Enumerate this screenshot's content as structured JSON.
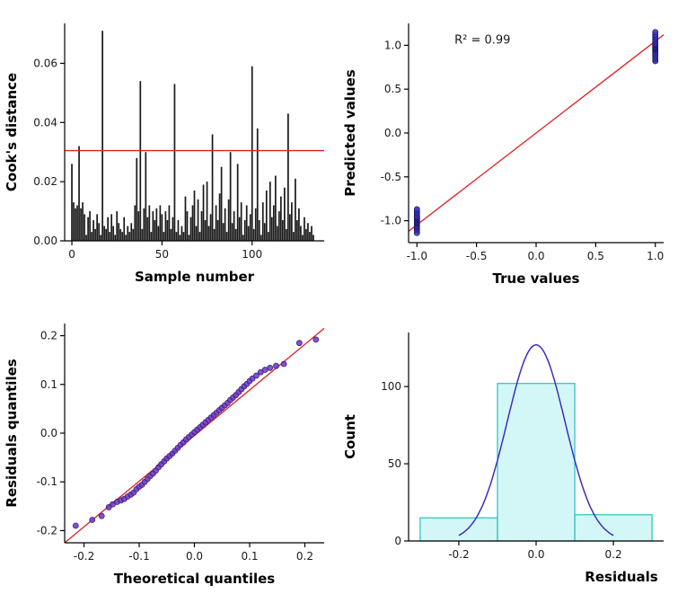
{
  "figure": {
    "background": "#ffffff"
  },
  "chart_data": [
    {
      "id": "cooks-distance",
      "type": "bar",
      "title": "",
      "xlabel": "Sample number",
      "ylabel": "Cook's distance",
      "xlim": [
        -4,
        140
      ],
      "ylim": [
        0,
        0.0735
      ],
      "xticks": {
        "vals": [
          0,
          50,
          100
        ],
        "labels": [
          "0",
          "50",
          "100"
        ]
      },
      "yticks": {
        "vals": [
          0.0,
          0.02,
          0.04,
          0.06
        ],
        "labels": [
          "0.00",
          "0.02",
          "0.04",
          "0.06"
        ]
      },
      "bar_color": "#1a1a1a",
      "threshold_line": {
        "y": 0.0305,
        "color": "#e02222"
      },
      "values": [
        0.026,
        0.013,
        0.011,
        0.012,
        0.032,
        0.011,
        0.013,
        0.009,
        0.002,
        0.008,
        0.01,
        0.003,
        0.007,
        0.004,
        0.009,
        0.006,
        0.002,
        0.071,
        0.005,
        0.004,
        0.008,
        0.003,
        0.009,
        0.005,
        0.002,
        0.01,
        0.006,
        0.004,
        0.003,
        0.008,
        0.002,
        0.005,
        0.003,
        0.006,
        0.004,
        0.012,
        0.028,
        0.01,
        0.054,
        0.004,
        0.011,
        0.03,
        0.008,
        0.012,
        0.003,
        0.01,
        0.007,
        0.011,
        0.005,
        0.012,
        0.009,
        0.003,
        0.01,
        0.007,
        0.012,
        0.004,
        0.008,
        0.053,
        0.003,
        0.007,
        0.002,
        0.005,
        0.003,
        0.015,
        0.01,
        0.002,
        0.008,
        0.012,
        0.017,
        0.005,
        0.014,
        0.003,
        0.01,
        0.019,
        0.007,
        0.02,
        0.005,
        0.009,
        0.036,
        0.004,
        0.012,
        0.007,
        0.016,
        0.025,
        0.006,
        0.011,
        0.003,
        0.014,
        0.03,
        0.006,
        0.01,
        0.004,
        0.026,
        0.008,
        0.013,
        0.002,
        0.007,
        0.012,
        0.005,
        0.009,
        0.059,
        0.004,
        0.011,
        0.038,
        0.007,
        0.002,
        0.013,
        0.006,
        0.017,
        0.003,
        0.02,
        0.008,
        0.012,
        0.022,
        0.005,
        0.01,
        0.015,
        0.007,
        0.018,
        0.004,
        0.043,
        0.009,
        0.013,
        0.003,
        0.021,
        0.007,
        0.011,
        0.005,
        0.002,
        0.008,
        0.004,
        0.006,
        0.003,
        0.005,
        0.002
      ]
    },
    {
      "id": "pred-vs-true",
      "type": "scatter",
      "title": "",
      "xlabel": "True values",
      "ylabel": "Predicted values",
      "xlim": [
        -1.07,
        1.07
      ],
      "ylim": [
        -1.25,
        1.25
      ],
      "xticks": {
        "vals": [
          -1.0,
          -0.5,
          0.0,
          0.5,
          1.0
        ],
        "labels": [
          "-1.0",
          "-0.5",
          "0.0",
          "0.5",
          "1.0"
        ]
      },
      "yticks": {
        "vals": [
          -1.0,
          -0.5,
          0.0,
          0.5,
          1.0
        ],
        "labels": [
          "-1.0",
          "-0.5",
          "0.0",
          "0.5",
          "1.0"
        ]
      },
      "point_color": "#3f37c8",
      "point_edge": "#1f1a66",
      "line": {
        "x1": -1.07,
        "y1": -1.12,
        "x2": 1.07,
        "y2": 1.12,
        "color": "#e02222"
      },
      "annotation": {
        "text": "R² = 0.99",
        "x": -0.45,
        "y": 1.02
      },
      "points": [
        [
          -1,
          -1.14
        ],
        [
          -1,
          -1.11
        ],
        [
          -1,
          -1.09
        ],
        [
          -1,
          -1.07
        ],
        [
          -1,
          -1.06
        ],
        [
          -1,
          -1.04
        ],
        [
          -1,
          -1.03
        ],
        [
          -1,
          -1.02
        ],
        [
          -1,
          -1.01
        ],
        [
          -1,
          -1.0
        ],
        [
          -1,
          -0.99
        ],
        [
          -1,
          -0.98
        ],
        [
          -1,
          -0.97
        ],
        [
          -1,
          -0.96
        ],
        [
          -1,
          -0.95
        ],
        [
          -1,
          -0.93
        ],
        [
          -1,
          -0.91
        ],
        [
          -1,
          -0.89
        ],
        [
          -1,
          -0.87
        ],
        [
          1,
          0.82
        ],
        [
          1,
          0.84
        ],
        [
          1,
          0.86
        ],
        [
          1,
          0.88
        ],
        [
          1,
          0.9
        ],
        [
          1,
          0.92
        ],
        [
          1,
          0.94
        ],
        [
          1,
          0.95
        ],
        [
          1,
          0.96
        ],
        [
          1,
          0.97
        ],
        [
          1,
          0.98
        ],
        [
          1,
          0.99
        ],
        [
          1,
          1.0
        ],
        [
          1,
          1.01
        ],
        [
          1,
          1.02
        ],
        [
          1,
          1.04
        ],
        [
          1,
          1.06
        ],
        [
          1,
          1.08
        ],
        [
          1,
          1.1
        ],
        [
          1,
          1.12
        ],
        [
          1,
          1.15
        ]
      ]
    },
    {
      "id": "qq-plot",
      "type": "scatter",
      "title": "",
      "xlabel": "Theoretical quantiles",
      "ylabel": "Residuals quantiles",
      "xlim": [
        -0.235,
        0.235
      ],
      "ylim": [
        -0.225,
        0.225
      ],
      "xticks": {
        "vals": [
          -0.2,
          -0.1,
          0.0,
          0.1,
          0.2
        ],
        "labels": [
          "-0.2",
          "-0.1",
          "0.0",
          "0.1",
          "0.2"
        ]
      },
      "yticks": {
        "vals": [
          -0.2,
          -0.1,
          0.0,
          0.1,
          0.2
        ],
        "labels": [
          "-0.2",
          "-0.1",
          "0.0",
          "0.1",
          "0.2"
        ]
      },
      "point_color": "#6b35c8",
      "point_edge": "#3c1f78",
      "line": {
        "x1": -0.235,
        "y1": -0.225,
        "x2": 0.235,
        "y2": 0.215,
        "color": "#e02222"
      },
      "annotation": null,
      "points": [
        [
          -0.215,
          -0.19
        ],
        [
          -0.185,
          -0.178
        ],
        [
          -0.168,
          -0.17
        ],
        [
          -0.155,
          -0.152
        ],
        [
          -0.148,
          -0.146
        ],
        [
          -0.14,
          -0.141
        ],
        [
          -0.133,
          -0.138
        ],
        [
          -0.127,
          -0.135
        ],
        [
          -0.121,
          -0.13
        ],
        [
          -0.115,
          -0.126
        ],
        [
          -0.11,
          -0.122
        ],
        [
          -0.105,
          -0.115
        ],
        [
          -0.1,
          -0.11
        ],
        [
          -0.095,
          -0.106
        ],
        [
          -0.09,
          -0.1
        ],
        [
          -0.085,
          -0.094
        ],
        [
          -0.08,
          -0.088
        ],
        [
          -0.075,
          -0.083
        ],
        [
          -0.07,
          -0.077
        ],
        [
          -0.065,
          -0.07
        ],
        [
          -0.06,
          -0.064
        ],
        [
          -0.055,
          -0.058
        ],
        [
          -0.05,
          -0.052
        ],
        [
          -0.045,
          -0.047
        ],
        [
          -0.04,
          -0.042
        ],
        [
          -0.035,
          -0.036
        ],
        [
          -0.03,
          -0.03
        ],
        [
          -0.025,
          -0.024
        ],
        [
          -0.02,
          -0.019
        ],
        [
          -0.015,
          -0.013
        ],
        [
          -0.01,
          -0.008
        ],
        [
          -0.005,
          -0.003
        ],
        [
          0.0,
          0.002
        ],
        [
          0.005,
          0.007
        ],
        [
          0.01,
          0.012
        ],
        [
          0.015,
          0.017
        ],
        [
          0.02,
          0.022
        ],
        [
          0.025,
          0.027
        ],
        [
          0.03,
          0.032
        ],
        [
          0.035,
          0.037
        ],
        [
          0.04,
          0.042
        ],
        [
          0.045,
          0.047
        ],
        [
          0.05,
          0.052
        ],
        [
          0.055,
          0.057
        ],
        [
          0.06,
          0.062
        ],
        [
          0.065,
          0.068
        ],
        [
          0.07,
          0.073
        ],
        [
          0.075,
          0.078
        ],
        [
          0.08,
          0.084
        ],
        [
          0.085,
          0.09
        ],
        [
          0.09,
          0.096
        ],
        [
          0.095,
          0.101
        ],
        [
          0.1,
          0.107
        ],
        [
          0.105,
          0.112
        ],
        [
          0.112,
          0.118
        ],
        [
          0.12,
          0.125
        ],
        [
          0.128,
          0.13
        ],
        [
          0.137,
          0.134
        ],
        [
          0.148,
          0.138
        ],
        [
          0.162,
          0.142
        ],
        [
          0.19,
          0.185
        ],
        [
          0.22,
          0.192
        ]
      ]
    },
    {
      "id": "residuals-histogram",
      "type": "histogram",
      "title": "",
      "xlabel": "Residuals",
      "ylabel": "Count",
      "xlim": [
        -0.33,
        0.33
      ],
      "ylim": [
        0,
        135
      ],
      "xticks": {
        "vals": [
          -0.2,
          0.0,
          0.2
        ],
        "labels": [
          "-0.2",
          "0.0",
          "0.2"
        ]
      },
      "yticks": {
        "vals": [
          0,
          50,
          100
        ],
        "labels": [
          "0",
          "50",
          "100"
        ]
      },
      "bar_fill": "#aef0f0",
      "bar_edge": "#2abfbf",
      "bins": {
        "edges": [
          -0.3,
          -0.1,
          0.1,
          0.3
        ],
        "counts": [
          15,
          102,
          17
        ]
      },
      "curve": {
        "mean": 0,
        "sd": 0.075,
        "peak": 127,
        "x_range": [
          -0.2,
          0.2
        ],
        "color": "#3b2fbd"
      }
    }
  ]
}
